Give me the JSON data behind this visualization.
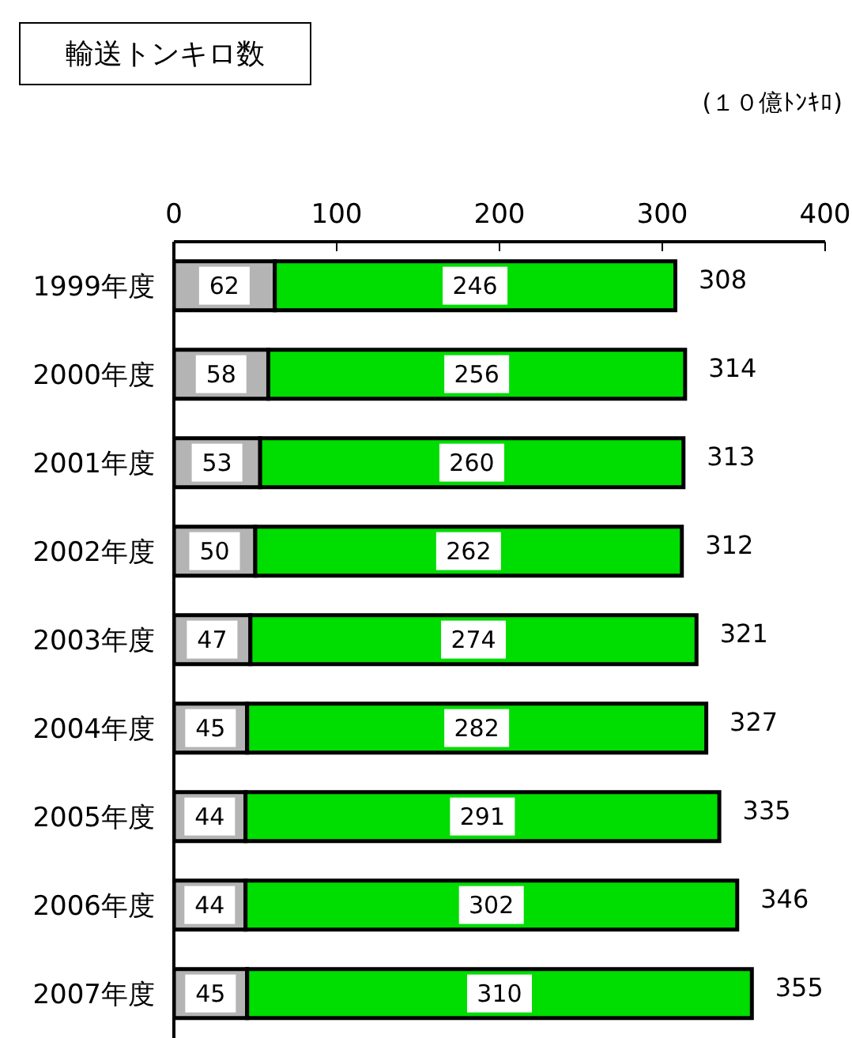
{
  "chart_data": {
    "type": "bar",
    "orientation": "horizontal",
    "stacked": true,
    "title": "輸送トンキロ数",
    "annotations": [
      "(１０億ﾄﾝｷﾛ)"
    ],
    "categories": [
      "1999年度",
      "2000年度",
      "2001年度",
      "2002年度",
      "2003年度",
      "2004年度",
      "2005年度",
      "2006年度",
      "2007年度"
    ],
    "series": [
      {
        "color": "#b4b4b4",
        "values": [
          62,
          58,
          53,
          50,
          47,
          45,
          44,
          44,
          45
        ]
      },
      {
        "color": "#00dd00",
        "values": [
          246,
          256,
          260,
          262,
          274,
          282,
          291,
          302,
          310
        ]
      }
    ],
    "totals": [
      "308",
      "314",
      "313",
      "312",
      "321",
      "327",
      "335",
      "346",
      "355"
    ],
    "xlim": [
      0,
      400
    ],
    "xticks": [
      0,
      100,
      200,
      300,
      400
    ],
    "data_labels": true,
    "grid": false,
    "legend": false
  }
}
